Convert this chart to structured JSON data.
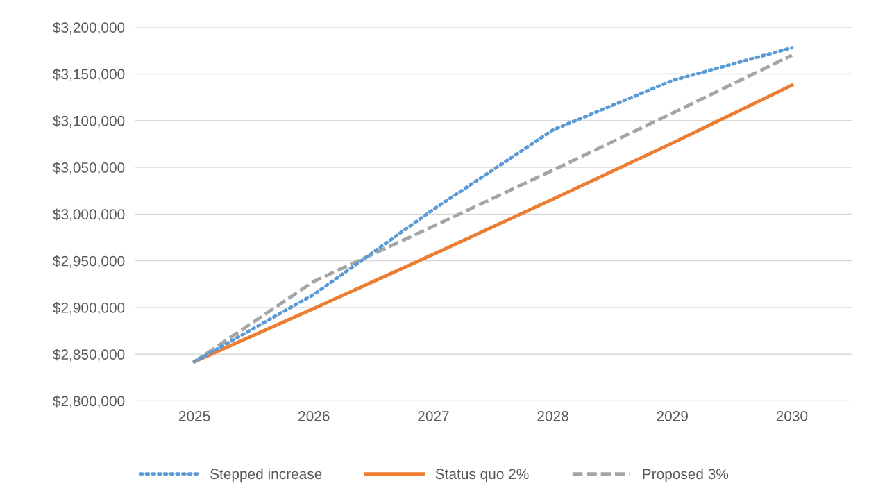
{
  "chart_data": {
    "type": "line",
    "categories": [
      "2025",
      "2026",
      "2027",
      "2028",
      "2029",
      "2030"
    ],
    "series": [
      {
        "name": "Stepped increase",
        "color": "#5b9bd5",
        "line_style": "dotted",
        "values": [
          2842000,
          2914000,
          3005000,
          3090000,
          3143000,
          3178000
        ]
      },
      {
        "name": "Status quo 2%",
        "color": "#ed7d31",
        "line_style": "solid",
        "values": [
          2842000,
          2899000,
          2957000,
          3016000,
          3076000,
          3138000
        ]
      },
      {
        "name": "Proposed 3%",
        "color": "#a5a5a5",
        "line_style": "dashed",
        "values": [
          2842000,
          2928000,
          2987000,
          3047000,
          3108000,
          3170000
        ]
      }
    ],
    "ylim": [
      2800000,
      3200000
    ],
    "yticks": [
      {
        "value": 2800000,
        "label": "$2,800,000"
      },
      {
        "value": 2850000,
        "label": "$2,850,000"
      },
      {
        "value": 2900000,
        "label": "$2,900,000"
      },
      {
        "value": 2950000,
        "label": "$2,950,000"
      },
      {
        "value": 3000000,
        "label": "$3,000,000"
      },
      {
        "value": 3050000,
        "label": "$3,050,000"
      },
      {
        "value": 3100000,
        "label": "$3,100,000"
      },
      {
        "value": 3150000,
        "label": "$3,150,000"
      },
      {
        "value": 3200000,
        "label": "$3,200,000"
      }
    ],
    "grid": "y",
    "legend": "bottom",
    "marker": "none"
  }
}
